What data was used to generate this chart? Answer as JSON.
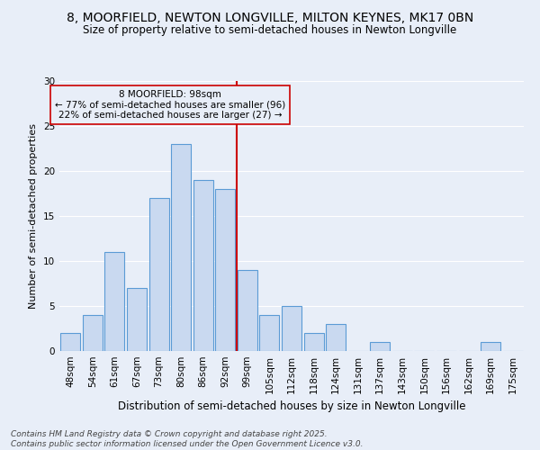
{
  "title": "8, MOORFIELD, NEWTON LONGVILLE, MILTON KEYNES, MK17 0BN",
  "subtitle": "Size of property relative to semi-detached houses in Newton Longville",
  "xlabel": "Distribution of semi-detached houses by size in Newton Longville",
  "ylabel": "Number of semi-detached properties",
  "categories": [
    "48sqm",
    "54sqm",
    "61sqm",
    "67sqm",
    "73sqm",
    "80sqm",
    "86sqm",
    "92sqm",
    "99sqm",
    "105sqm",
    "112sqm",
    "118sqm",
    "124sqm",
    "131sqm",
    "137sqm",
    "143sqm",
    "150sqm",
    "156sqm",
    "162sqm",
    "169sqm",
    "175sqm"
  ],
  "values": [
    2,
    4,
    11,
    7,
    17,
    23,
    19,
    18,
    9,
    4,
    5,
    2,
    3,
    0,
    1,
    0,
    0,
    0,
    0,
    1,
    0
  ],
  "bar_color": "#c9d9f0",
  "bar_edge_color": "#5b9bd5",
  "ylim": [
    0,
    30
  ],
  "yticks": [
    0,
    5,
    10,
    15,
    20,
    25,
    30
  ],
  "property_label": "8 MOORFIELD: 98sqm",
  "pct_smaller": 77,
  "n_smaller": 96,
  "pct_larger": 22,
  "n_larger": 27,
  "vline_color": "#cc0000",
  "annotation_box_color": "#cc0000",
  "background_color": "#e8eef8",
  "grid_color": "#ffffff",
  "footer": "Contains HM Land Registry data © Crown copyright and database right 2025.\nContains public sector information licensed under the Open Government Licence v3.0.",
  "title_fontsize": 10,
  "subtitle_fontsize": 8.5,
  "xlabel_fontsize": 8.5,
  "ylabel_fontsize": 8,
  "tick_fontsize": 7.5,
  "footer_fontsize": 6.5
}
